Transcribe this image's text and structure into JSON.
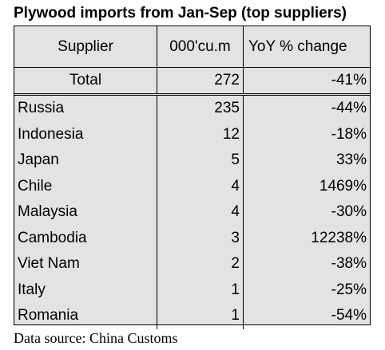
{
  "title": "Plywood imports from Jan-Sep (top suppliers)",
  "table": {
    "headers": [
      "Supplier",
      "000'cu.m",
      "YoY % change"
    ],
    "total": {
      "supplier": "Total",
      "volume": "272",
      "change": "-41%"
    },
    "rows": [
      {
        "supplier": "Russia",
        "volume": "235",
        "change": "-44%"
      },
      {
        "supplier": "Indonesia",
        "volume": "12",
        "change": "-18%"
      },
      {
        "supplier": "Japan",
        "volume": "5",
        "change": "33%"
      },
      {
        "supplier": "Chile",
        "volume": "4",
        "change": "1469%"
      },
      {
        "supplier": "Malaysia",
        "volume": "4",
        "change": "-30%"
      },
      {
        "supplier": "Cambodia",
        "volume": "3",
        "change": "12238%"
      },
      {
        "supplier": "Viet Nam",
        "volume": "2",
        "change": "-38%"
      },
      {
        "supplier": "Italy",
        "volume": "1",
        "change": "-25%"
      },
      {
        "supplier": "Romania",
        "volume": "1",
        "change": "-54%"
      }
    ]
  },
  "source": "Data source: China Customs",
  "colors": {
    "table_background": "#e3e3e3",
    "border": "#000000"
  }
}
